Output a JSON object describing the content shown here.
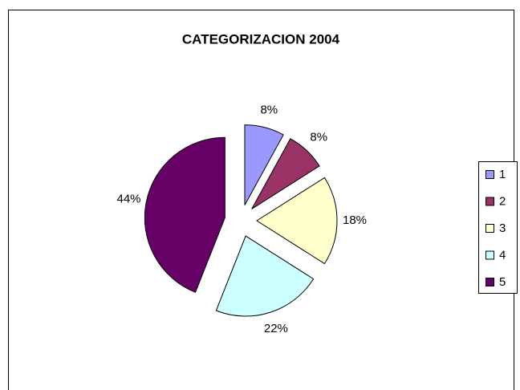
{
  "chart_data": {
    "type": "pie",
    "title": "CATEGORIZACION 2004",
    "categories": [
      "1",
      "2",
      "3",
      "4",
      "5"
    ],
    "values": [
      8,
      8,
      18,
      22,
      44
    ],
    "value_labels": [
      "8%",
      "8%",
      "18%",
      "22%",
      "44%"
    ],
    "colors": [
      "#9999ff",
      "#993366",
      "#ffffcc",
      "#ccffff",
      "#660066"
    ],
    "exploded": true,
    "legend": "right"
  }
}
